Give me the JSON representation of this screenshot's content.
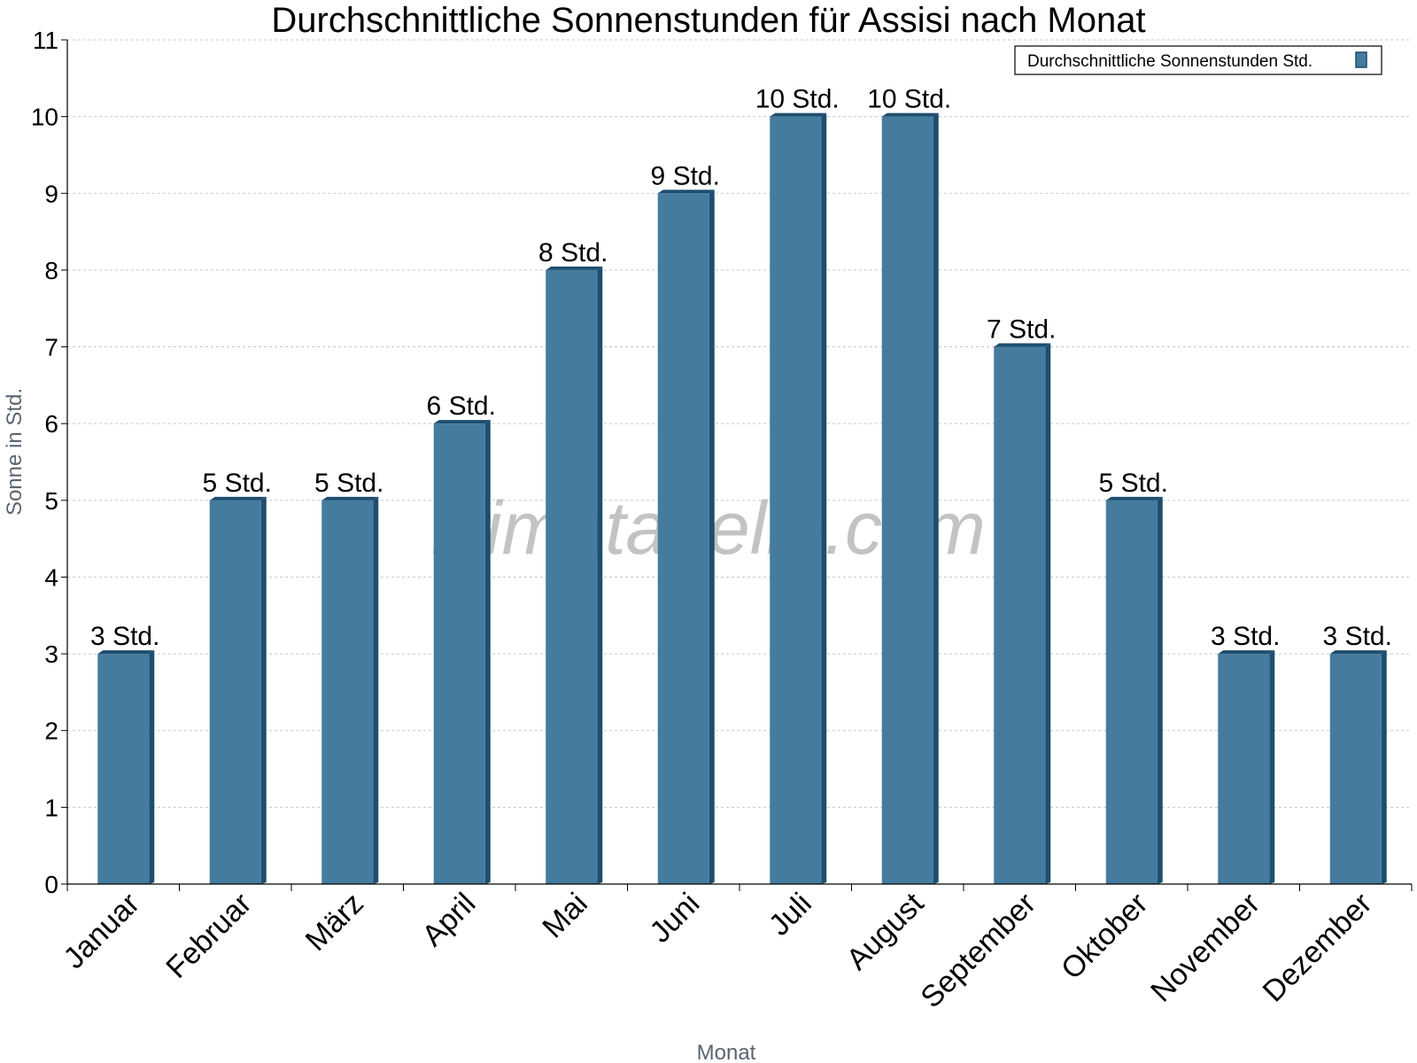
{
  "chart_data": {
    "type": "bar",
    "title": "Durchschnittliche Sonnenstunden für Assisi nach Monat",
    "xlabel": "Monat",
    "ylabel": "Sonne in Std.",
    "ylim": [
      0,
      11
    ],
    "yticks": [
      0,
      1,
      2,
      3,
      4,
      5,
      6,
      7,
      8,
      9,
      10,
      11
    ],
    "grid": true,
    "legend_position": "top-right",
    "categories": [
      "Januar",
      "Februar",
      "März",
      "April",
      "Mai",
      "Juni",
      "Juli",
      "August",
      "September",
      "Oktober",
      "November",
      "Dezember"
    ],
    "series": [
      {
        "name": "Durchschnittliche Sonnenstunden Std.",
        "values": [
          3,
          5,
          5,
          6,
          8,
          9,
          10,
          10,
          7,
          5,
          3,
          3
        ],
        "labels": [
          "3 Std.",
          "5 Std.",
          "5 Std.",
          "6 Std.",
          "8 Std.",
          "9 Std.",
          "10 Std.",
          "10 Std.",
          "7 Std.",
          "5 Std.",
          "3 Std.",
          "3 Std."
        ],
        "color": "#457b9d",
        "shade_color": "#1d4e6f"
      }
    ]
  },
  "watermark": "klimatabelle.com"
}
